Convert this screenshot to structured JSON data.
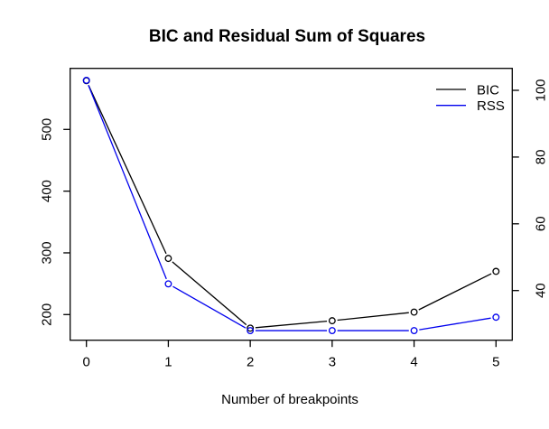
{
  "title": "BIC and Residual Sum of Squares",
  "xlabel": "Number of breakpoints",
  "colors": {
    "background": "#ffffff",
    "foreground": "#000000",
    "bic_series": "#000000",
    "rss_series": "#0000ee"
  },
  "legend": {
    "position": "top-right",
    "entries": [
      {
        "label": "BIC",
        "color": "#000000"
      },
      {
        "label": "RSS",
        "color": "#0000ee"
      }
    ]
  },
  "chart_data": {
    "type": "line",
    "title": "BIC and Residual Sum of Squares",
    "xlabel": "Number of breakpoints",
    "x": [
      0,
      1,
      2,
      3,
      4,
      5
    ],
    "x_ticks": [
      0,
      1,
      2,
      3,
      4,
      5
    ],
    "series": [
      {
        "name": "BIC",
        "axis": "left",
        "color": "#000000",
        "marker": "open-circle",
        "values": [
          579,
          291,
          178,
          190,
          204,
          270
        ]
      },
      {
        "name": "RSS",
        "axis": "right",
        "color": "#0000ee",
        "marker": "open-circle",
        "values": [
          103,
          42,
          28,
          28,
          28,
          32
        ]
      }
    ],
    "left_axis": {
      "ticks": [
        200,
        300,
        400,
        500
      ],
      "range": [
        163,
        592
      ]
    },
    "right_axis": {
      "ticks": [
        40,
        60,
        80,
        100
      ],
      "range": [
        24.9,
        106.5
      ]
    },
    "grid": false,
    "legend_position": "top-right"
  }
}
